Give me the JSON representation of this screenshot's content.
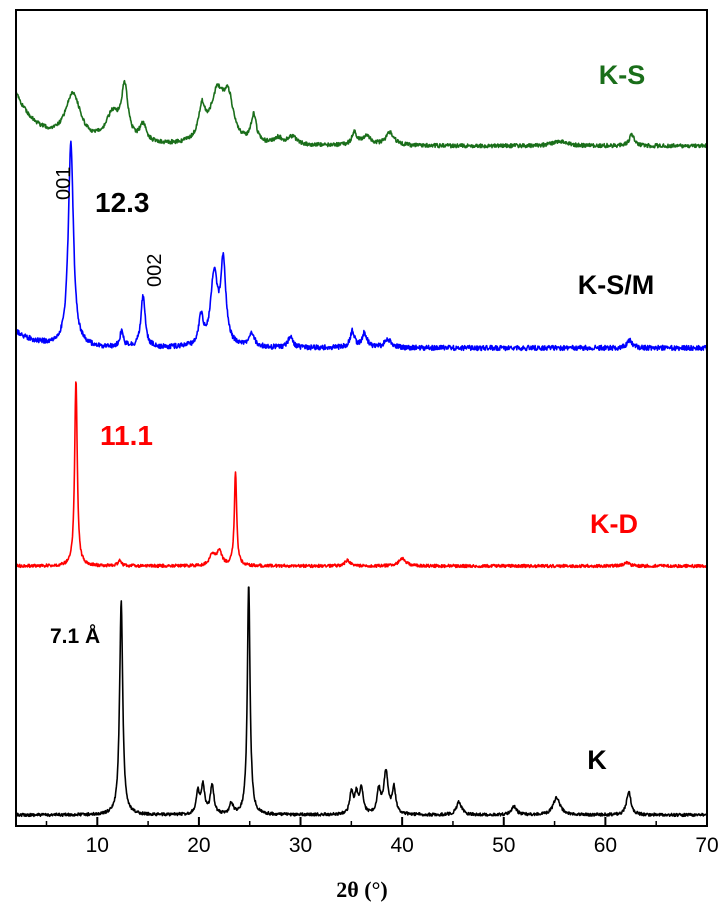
{
  "chart_data": {
    "type": "line",
    "xlabel": "2θ (°)",
    "ylabel": "",
    "xlim": [
      2,
      70
    ],
    "x_ticks": [
      10,
      20,
      30,
      40,
      50,
      60,
      70
    ],
    "y_ticks_shown": false,
    "grid": false,
    "legend": "none",
    "series": [
      {
        "name": "K",
        "color": "#000000",
        "peaks": [
          {
            "x": 12.35,
            "h": 1.0,
            "w": 0.18
          },
          {
            "x": 19.9,
            "h": 0.1,
            "w": 0.2
          },
          {
            "x": 20.4,
            "h": 0.13,
            "w": 0.2
          },
          {
            "x": 21.3,
            "h": 0.14,
            "w": 0.2
          },
          {
            "x": 23.2,
            "h": 0.05,
            "w": 0.2
          },
          {
            "x": 24.9,
            "h": 1.08,
            "w": 0.16
          },
          {
            "x": 35.0,
            "h": 0.1,
            "w": 0.2
          },
          {
            "x": 35.5,
            "h": 0.09,
            "w": 0.2
          },
          {
            "x": 36.0,
            "h": 0.12,
            "w": 0.2
          },
          {
            "x": 37.7,
            "h": 0.11,
            "w": 0.2
          },
          {
            "x": 38.4,
            "h": 0.2,
            "w": 0.25
          },
          {
            "x": 39.2,
            "h": 0.12,
            "w": 0.2
          },
          {
            "x": 45.6,
            "h": 0.06,
            "w": 0.3
          },
          {
            "x": 51.0,
            "h": 0.04,
            "w": 0.3
          },
          {
            "x": 55.2,
            "h": 0.08,
            "w": 0.4
          },
          {
            "x": 62.3,
            "h": 0.11,
            "w": 0.25
          }
        ]
      },
      {
        "name": "K-D",
        "color": "#ff0000",
        "peaks": [
          {
            "x": 7.9,
            "h": 1.0,
            "w": 0.15
          },
          {
            "x": 12.2,
            "h": 0.03,
            "w": 0.2
          },
          {
            "x": 21.3,
            "h": 0.06,
            "w": 0.3
          },
          {
            "x": 22.0,
            "h": 0.08,
            "w": 0.3
          },
          {
            "x": 23.6,
            "h": 0.5,
            "w": 0.14
          },
          {
            "x": 34.6,
            "h": 0.03,
            "w": 0.3
          },
          {
            "x": 40.0,
            "h": 0.04,
            "w": 0.4
          },
          {
            "x": 62.1,
            "h": 0.02,
            "w": 0.3
          }
        ]
      },
      {
        "name": "K-S/M",
        "color": "#0000ff",
        "peaks": [
          {
            "x": 7.4,
            "h": 1.0,
            "w": 0.3
          },
          {
            "x": 12.4,
            "h": 0.08,
            "w": 0.2
          },
          {
            "x": 14.5,
            "h": 0.25,
            "w": 0.25
          },
          {
            "x": 20.2,
            "h": 0.14,
            "w": 0.25
          },
          {
            "x": 21.5,
            "h": 0.35,
            "w": 0.4
          },
          {
            "x": 22.4,
            "h": 0.4,
            "w": 0.3
          },
          {
            "x": 25.2,
            "h": 0.07,
            "w": 0.3
          },
          {
            "x": 29.0,
            "h": 0.05,
            "w": 0.3
          },
          {
            "x": 35.1,
            "h": 0.08,
            "w": 0.25
          },
          {
            "x": 36.3,
            "h": 0.07,
            "w": 0.3
          },
          {
            "x": 38.6,
            "h": 0.04,
            "w": 0.4
          },
          {
            "x": 62.4,
            "h": 0.04,
            "w": 0.3
          }
        ]
      },
      {
        "name": "K-S",
        "color": "#1a6e1a",
        "peaks": [
          {
            "x": 7.6,
            "h": 0.6,
            "w": 0.9
          },
          {
            "x": 12.7,
            "h": 0.65,
            "w": 0.4
          },
          {
            "x": 11.5,
            "h": 0.35,
            "w": 0.8
          },
          {
            "x": 14.5,
            "h": 0.22,
            "w": 0.4
          },
          {
            "x": 20.3,
            "h": 0.4,
            "w": 0.4
          },
          {
            "x": 21.8,
            "h": 0.6,
            "w": 0.8
          },
          {
            "x": 22.9,
            "h": 0.5,
            "w": 0.6
          },
          {
            "x": 25.4,
            "h": 0.35,
            "w": 0.3
          },
          {
            "x": 27.8,
            "h": 0.08,
            "w": 0.5
          },
          {
            "x": 29.2,
            "h": 0.1,
            "w": 0.5
          },
          {
            "x": 35.3,
            "h": 0.15,
            "w": 0.3
          },
          {
            "x": 36.5,
            "h": 0.12,
            "w": 0.5
          },
          {
            "x": 38.8,
            "h": 0.16,
            "w": 0.5
          },
          {
            "x": 55.5,
            "h": 0.06,
            "w": 0.8
          },
          {
            "x": 62.6,
            "h": 0.14,
            "w": 0.3
          }
        ]
      }
    ],
    "annotations": {
      "k_spacing": "7.1 Å",
      "kd_spacing": "11.1",
      "ksm_spacing": "12.3",
      "ksm_peak_001": "001",
      "ksm_peak_002": "002"
    }
  }
}
